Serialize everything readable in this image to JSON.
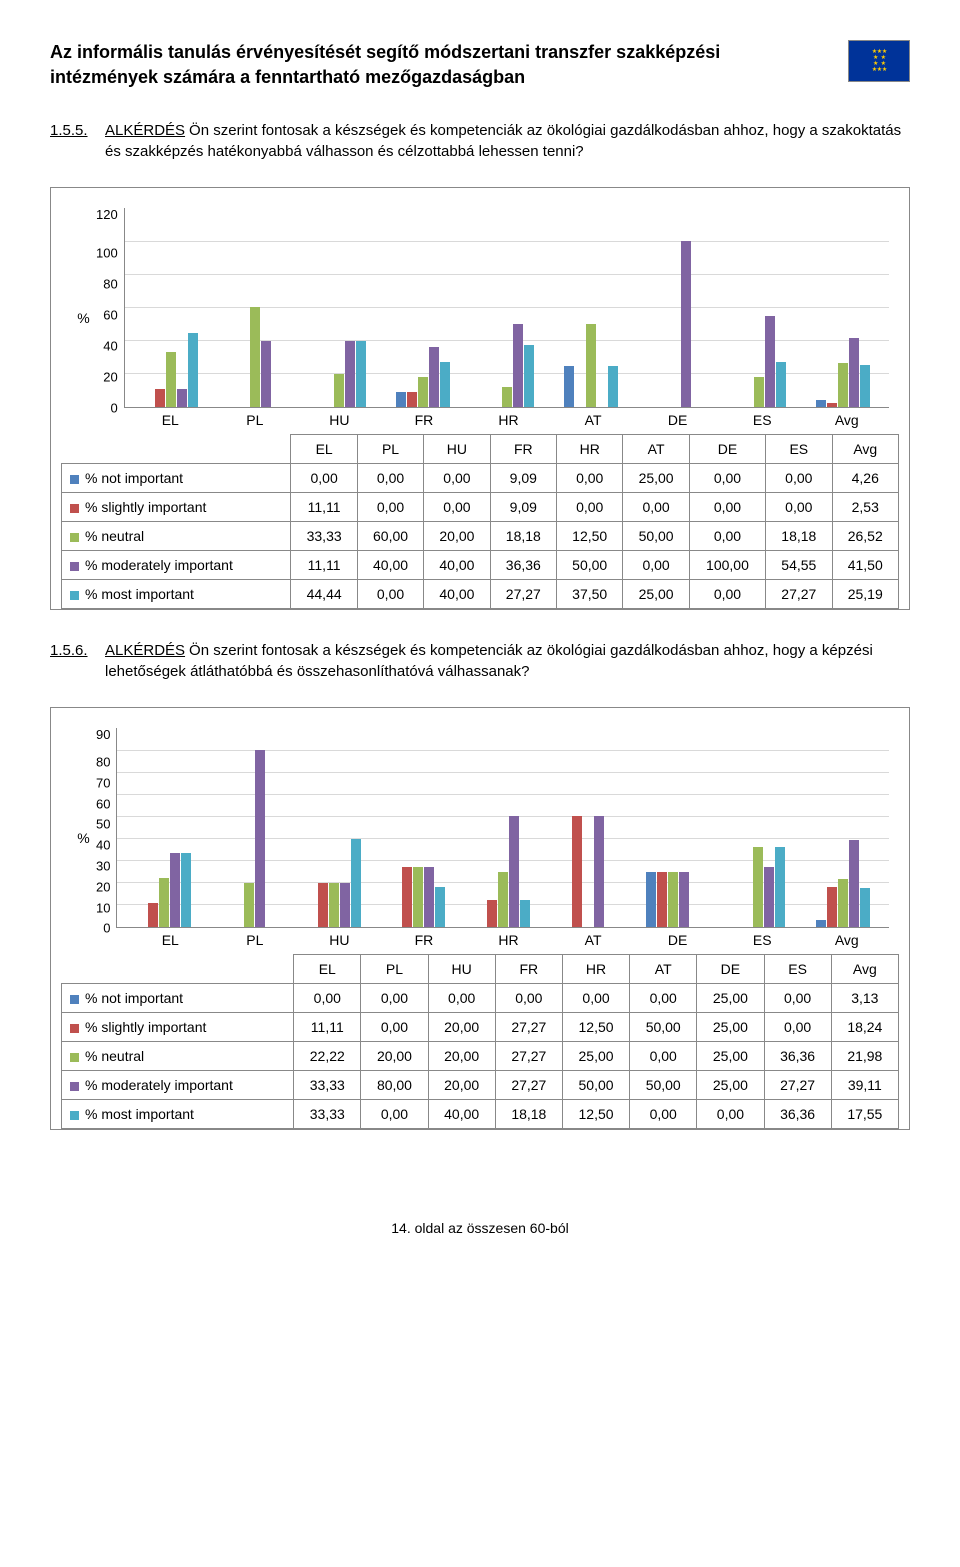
{
  "header": {
    "title": "Az informális tanulás érvényesítését segítő módszertani transzfer szakképzési intézmények számára a fenntartható mezőgazdaságban",
    "flag_bg": "#003399",
    "flag_star": "#ffcc00"
  },
  "q1": {
    "num": "1.5.5.",
    "label": "ALKÉRDÉS",
    "text": "Ön szerint fontosak a készségek és kompetenciák az ökológiai gazdálkodásban ahhoz, hogy a szakoktatás és szakképzés hatékonyabbá válhasson és célzottabbá lehessen tenni?"
  },
  "q2": {
    "num": "1.5.6.",
    "label": "ALKÉRDÉS",
    "text": "Ön szerint fontosak a készségek és kompetenciák az ökológiai gazdálkodásban ahhoz, hogy a képzési lehetőségek átláthatóbbá és összehasonlíthatóvá válhassanak?"
  },
  "axis_label": "%",
  "chart1": {
    "type": "bar",
    "ymax": 120,
    "ticks": [
      "120",
      "100",
      "80",
      "60",
      "40",
      "20",
      "0"
    ],
    "categories": [
      "EL",
      "PL",
      "HU",
      "FR",
      "HR",
      "AT",
      "DE",
      "ES",
      "Avg"
    ],
    "series": [
      {
        "name": "% not important",
        "color": "#4f81bd",
        "values": [
          "0,00",
          "0,00",
          "0,00",
          "9,09",
          "0,00",
          "25,00",
          "0,00",
          "0,00",
          "4,26"
        ],
        "nums": [
          0,
          0,
          0,
          9.09,
          0,
          25,
          0,
          0,
          4.26
        ]
      },
      {
        "name": "% slightly important",
        "color": "#c0504d",
        "values": [
          "11,11",
          "0,00",
          "0,00",
          "9,09",
          "0,00",
          "0,00",
          "0,00",
          "0,00",
          "2,53"
        ],
        "nums": [
          11.11,
          0,
          0,
          9.09,
          0,
          0,
          0,
          0,
          2.53
        ]
      },
      {
        "name": "% neutral",
        "color": "#9bbb59",
        "values": [
          "33,33",
          "60,00",
          "20,00",
          "18,18",
          "12,50",
          "50,00",
          "0,00",
          "18,18",
          "26,52"
        ],
        "nums": [
          33.33,
          60,
          20,
          18.18,
          12.5,
          50,
          0,
          18.18,
          26.52
        ]
      },
      {
        "name": "% moderately important",
        "color": "#8064a2",
        "values": [
          "11,11",
          "40,00",
          "40,00",
          "36,36",
          "50,00",
          "0,00",
          "100,00",
          "54,55",
          "41,50"
        ],
        "nums": [
          11.11,
          40,
          40,
          36.36,
          50,
          0,
          100,
          54.55,
          41.5
        ]
      },
      {
        "name": "% most important",
        "color": "#4bacc6",
        "values": [
          "44,44",
          "0,00",
          "40,00",
          "27,27",
          "37,50",
          "25,00",
          "0,00",
          "27,27",
          "25,19"
        ],
        "nums": [
          44.44,
          0,
          40,
          27.27,
          37.5,
          25,
          0,
          27.27,
          25.19
        ]
      }
    ]
  },
  "chart2": {
    "type": "bar",
    "ymax": 90,
    "ticks": [
      "90",
      "80",
      "70",
      "60",
      "50",
      "40",
      "30",
      "20",
      "10",
      "0"
    ],
    "categories": [
      "EL",
      "PL",
      "HU",
      "FR",
      "HR",
      "AT",
      "DE",
      "ES",
      "Avg"
    ],
    "series": [
      {
        "name": "% not important",
        "color": "#4f81bd",
        "values": [
          "0,00",
          "0,00",
          "0,00",
          "0,00",
          "0,00",
          "0,00",
          "25,00",
          "0,00",
          "3,13"
        ],
        "nums": [
          0,
          0,
          0,
          0,
          0,
          0,
          25,
          0,
          3.13
        ]
      },
      {
        "name": "% slightly important",
        "color": "#c0504d",
        "values": [
          "11,11",
          "0,00",
          "20,00",
          "27,27",
          "12,50",
          "50,00",
          "25,00",
          "0,00",
          "18,24"
        ],
        "nums": [
          11.11,
          0,
          20,
          27.27,
          12.5,
          50,
          25,
          0,
          18.24
        ]
      },
      {
        "name": "% neutral",
        "color": "#9bbb59",
        "values": [
          "22,22",
          "20,00",
          "20,00",
          "27,27",
          "25,00",
          "0,00",
          "25,00",
          "36,36",
          "21,98"
        ],
        "nums": [
          22.22,
          20,
          20,
          27.27,
          25,
          0,
          25,
          36.36,
          21.98
        ]
      },
      {
        "name": "% moderately important",
        "color": "#8064a2",
        "values": [
          "33,33",
          "80,00",
          "20,00",
          "27,27",
          "50,00",
          "50,00",
          "25,00",
          "27,27",
          "39,11"
        ],
        "nums": [
          33.33,
          80,
          20,
          27.27,
          50,
          50,
          25,
          27.27,
          39.11
        ]
      },
      {
        "name": "% most important",
        "color": "#4bacc6",
        "values": [
          "33,33",
          "0,00",
          "40,00",
          "18,18",
          "12,50",
          "0,00",
          "0,00",
          "36,36",
          "17,55"
        ],
        "nums": [
          33.33,
          0,
          40,
          18.18,
          12.5,
          0,
          0,
          36.36,
          17.55
        ]
      }
    ]
  },
  "footer": "14. oldal az összesen 60-ból"
}
